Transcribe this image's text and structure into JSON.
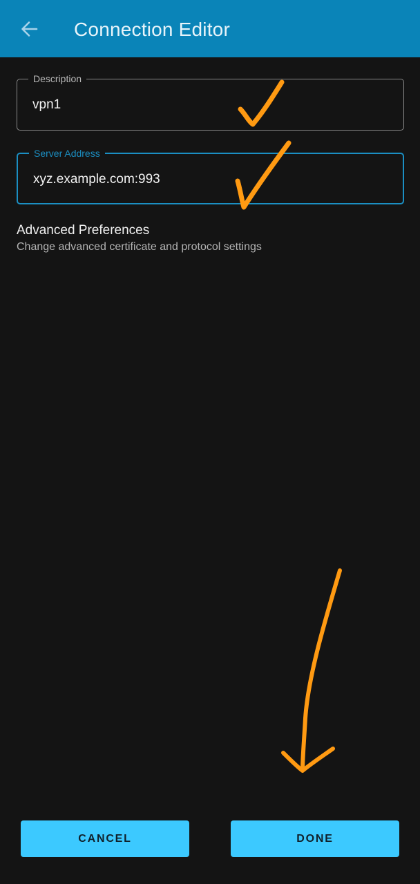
{
  "header": {
    "title": "Connection Editor",
    "back_icon": "arrow-left-icon",
    "background_color": "#0a84b8"
  },
  "form": {
    "description": {
      "label": "Description",
      "value": "vpn1"
    },
    "server_address": {
      "label": "Server Address",
      "value": "xyz.example.com:993"
    }
  },
  "advanced": {
    "title": "Advanced Preferences",
    "subtitle": "Change advanced certificate and protocol settings"
  },
  "actions": {
    "cancel_label": "CANCEL",
    "done_label": "DONE",
    "button_color": "#3cc9ff"
  },
  "annotation_color": "#ff9a12"
}
